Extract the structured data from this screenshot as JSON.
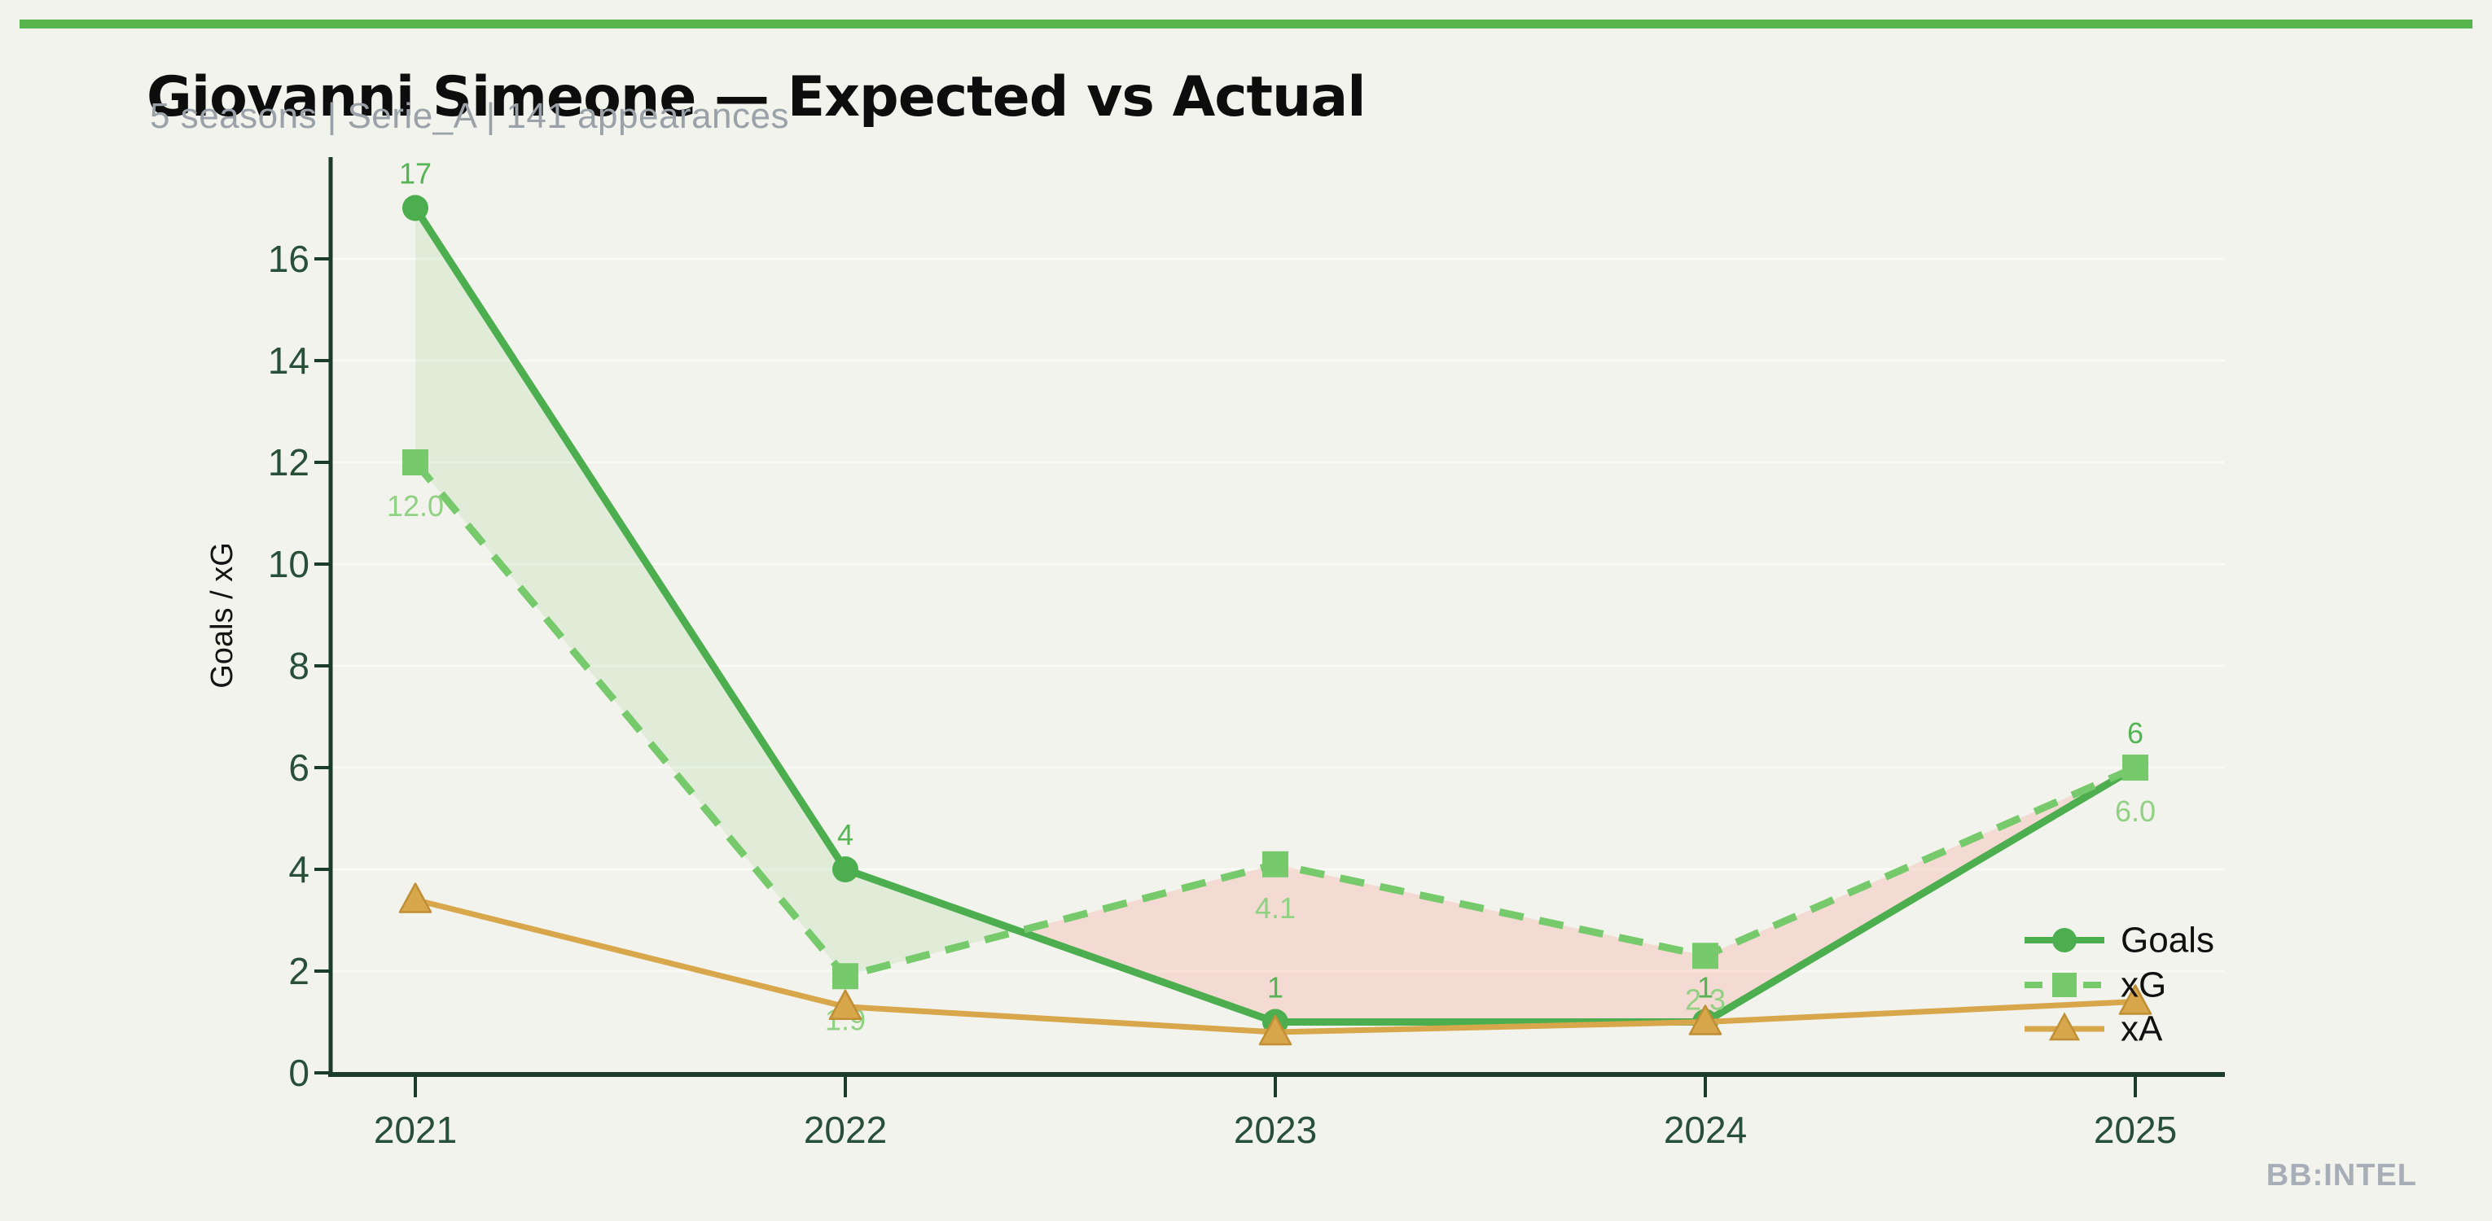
{
  "header": {
    "title": "Giovanni Simeone — Expected vs Actual",
    "subtitle": "5 seasons | Serie_A | 141 appearances"
  },
  "footer": {
    "watermark": "BB:INTEL"
  },
  "colors": {
    "background": "#f2f3ec",
    "top_bar": "#56b54c",
    "axis": "#1b3c2a",
    "tick_label": "#285039",
    "gridline": "#ffffff",
    "goals": "#4cae4f",
    "goals_label": "#55b554",
    "xg": "#77ca6c",
    "xg_label": "#90d184",
    "xa": "#d8a74c",
    "xa_edge": "#c08f35",
    "fill_overperform": "#77c96c",
    "fill_underperform": "#f4a698",
    "legend_text": "#101010",
    "axis_title": "#141414"
  },
  "chart_data": {
    "type": "line",
    "title": "Giovanni Simeone — Expected vs Actual",
    "subtitle": "5 seasons | Serie_A | 141 appearances",
    "x": [
      2021,
      2022,
      2023,
      2024,
      2025
    ],
    "xlabel": "",
    "ylabel": "Goals / xG",
    "ylim": [
      0,
      18
    ],
    "yticks": [
      0,
      2,
      4,
      6,
      8,
      10,
      12,
      14,
      16
    ],
    "grid": "faint horizontal gridlines at y ticks",
    "legend_position": "lower right, no frame",
    "legend_entries": [
      "Goals",
      "xG",
      "xA"
    ],
    "series": [
      {
        "name": "Goals",
        "marker": "circle",
        "line_style": "solid",
        "values": [
          17,
          4,
          1,
          1,
          6
        ],
        "point_labels": [
          "17",
          "4",
          "1",
          "1",
          "6"
        ],
        "label_side": "above"
      },
      {
        "name": "xG",
        "marker": "square",
        "line_style": "dashed",
        "values": [
          12.0,
          1.9,
          4.1,
          2.3,
          6.0
        ],
        "point_labels": [
          "12.0",
          "1.9",
          "4.1",
          "2.3",
          "6.0"
        ],
        "label_side": "below"
      },
      {
        "name": "xA",
        "marker": "triangle",
        "line_style": "solid",
        "values": [
          3.4,
          1.3,
          0.8,
          1.0,
          1.4
        ],
        "point_labels": [],
        "label_side": "none"
      }
    ],
    "fill_between": "area between Goals and xG: green where Goals > xG, pink where xG > Goals"
  }
}
